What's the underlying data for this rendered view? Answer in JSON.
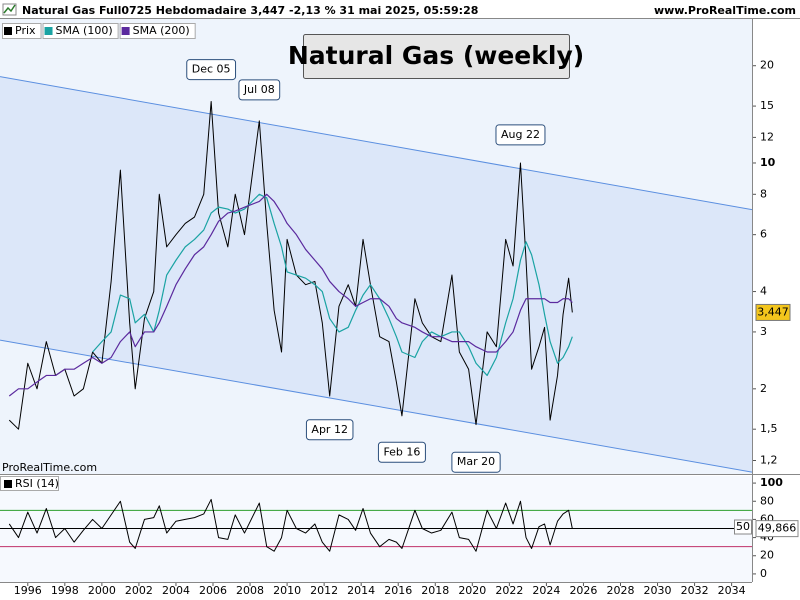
{
  "chart_data": {
    "type": "line",
    "title": "Natural Gas (weekly)",
    "subtitle": "Natural Gas Full0725 Hebdomadaire 3,447 -2,13 % 31 mai 2025, 05:59:28",
    "source": "www.ProRealTime.com",
    "watermark": "ProRealTime.com",
    "log_scale": true,
    "x": [
      1995.0,
      1995.5,
      1996.0,
      1996.5,
      1997.0,
      1997.5,
      1998.0,
      1998.5,
      1999.0,
      1999.5,
      2000.0,
      2000.5,
      2001.0,
      2001.5,
      2001.8,
      2002.3,
      2002.8,
      2003.1,
      2003.5,
      2004.0,
      2004.5,
      2005.0,
      2005.5,
      2005.9,
      2006.3,
      2006.8,
      2007.2,
      2007.7,
      2008.5,
      2008.9,
      2009.3,
      2009.7,
      2010.0,
      2010.5,
      2011.0,
      2011.5,
      2011.9,
      2012.3,
      2012.8,
      2013.3,
      2013.7,
      2014.1,
      2014.5,
      2015.0,
      2015.5,
      2015.9,
      2016.2,
      2016.9,
      2017.3,
      2017.8,
      2018.3,
      2018.9,
      2019.3,
      2019.8,
      2020.2,
      2020.8,
      2021.3,
      2021.8,
      2022.2,
      2022.6,
      2022.9,
      2023.2,
      2023.6,
      2023.9,
      2024.2,
      2024.6,
      2024.9,
      2025.2,
      2025.4
    ],
    "series": [
      {
        "name": "Prix",
        "color": "#000000",
        "values": [
          1.6,
          1.5,
          2.4,
          2.0,
          2.8,
          2.2,
          2.3,
          1.9,
          2.0,
          2.6,
          2.4,
          4.3,
          9.5,
          3.2,
          2.0,
          3.3,
          4.0,
          8.0,
          5.5,
          6.0,
          6.5,
          6.8,
          8.0,
          15.5,
          7.0,
          5.5,
          8.0,
          6.0,
          13.5,
          6.5,
          3.5,
          2.6,
          5.8,
          4.5,
          4.2,
          4.3,
          3.2,
          1.9,
          3.6,
          4.2,
          3.6,
          5.8,
          4.2,
          2.9,
          2.8,
          2.1,
          1.65,
          3.8,
          3.2,
          2.9,
          2.8,
          4.5,
          2.6,
          2.3,
          1.55,
          3.0,
          2.7,
          5.8,
          4.8,
          10.0,
          5.0,
          2.3,
          2.7,
          3.1,
          1.6,
          2.2,
          3.4,
          4.4,
          3.447
        ],
        "value_labels": [
          null,
          null,
          null,
          null,
          null,
          null,
          null,
          null,
          null,
          null,
          null,
          null,
          null,
          null,
          null,
          null,
          null,
          null,
          null,
          null,
          null,
          null,
          null,
          null,
          null,
          null,
          null,
          null,
          null,
          null,
          null,
          null,
          null,
          null,
          null,
          null,
          null,
          null,
          null,
          null,
          null,
          null,
          null,
          null,
          null,
          null,
          null,
          null,
          null,
          null,
          null,
          null,
          null,
          null,
          null,
          null,
          null,
          null,
          null,
          null,
          null,
          null,
          null,
          null,
          null,
          null,
          null,
          null,
          "3,447"
        ]
      },
      {
        "name": "SMA (100)",
        "color": "#1aa3a3",
        "values": [
          null,
          null,
          null,
          null,
          null,
          null,
          null,
          null,
          null,
          2.6,
          2.8,
          3.0,
          3.9,
          3.8,
          3.2,
          3.4,
          3.0,
          3.5,
          4.5,
          5.0,
          5.5,
          5.8,
          6.2,
          7.0,
          7.3,
          7.2,
          7.0,
          7.2,
          8.0,
          7.8,
          6.5,
          5.5,
          4.6,
          4.5,
          4.4,
          4.2,
          4.0,
          3.3,
          3.0,
          3.1,
          3.5,
          3.9,
          4.2,
          3.8,
          3.3,
          2.9,
          2.6,
          2.5,
          2.8,
          3.0,
          2.9,
          3.0,
          3.0,
          2.7,
          2.4,
          2.2,
          2.5,
          3.2,
          3.8,
          5.0,
          5.7,
          5.2,
          4.2,
          3.4,
          2.8,
          2.4,
          2.5,
          2.7,
          2.9
        ]
      },
      {
        "name": "SMA (200)",
        "color": "#5b2a9e",
        "values": [
          1.9,
          2.0,
          2.0,
          2.1,
          2.2,
          2.2,
          2.3,
          2.3,
          2.4,
          2.5,
          2.4,
          2.5,
          2.8,
          3.0,
          2.7,
          3.0,
          3.0,
          3.2,
          3.6,
          4.2,
          4.7,
          5.2,
          5.5,
          6.0,
          6.6,
          7.0,
          7.1,
          7.3,
          7.6,
          8.0,
          7.6,
          7.0,
          6.5,
          6.0,
          5.4,
          5.0,
          4.7,
          4.3,
          4.0,
          3.8,
          3.6,
          3.7,
          3.8,
          3.8,
          3.6,
          3.3,
          3.2,
          3.1,
          3.0,
          2.9,
          2.9,
          2.8,
          2.8,
          2.8,
          2.7,
          2.6,
          2.6,
          2.8,
          3.0,
          3.5,
          3.8,
          3.8,
          3.8,
          3.8,
          3.7,
          3.7,
          3.8,
          3.8,
          3.7
        ]
      }
    ],
    "xlim": [
      1994.5,
      2035.1
    ],
    "xticks": [
      1996,
      1998,
      2000,
      2002,
      2004,
      2006,
      2008,
      2010,
      2012,
      2014,
      2016,
      2018,
      2020,
      2022,
      2024,
      2026,
      2028,
      2030,
      2032,
      2034
    ],
    "ylim": [
      1.09,
      27.9
    ],
    "yticks": [
      {
        "value": 1.2,
        "label": "1,2"
      },
      {
        "value": 1.5,
        "label": "1,5"
      },
      2,
      3,
      4,
      6,
      8,
      10,
      12,
      15,
      20
    ],
    "channel": {
      "x": [
        1994.5,
        2035.1
      ],
      "upper": [
        18.5,
        7.17
      ],
      "lower": [
        2.83,
        1.105
      ],
      "color": "#5b8fe0"
    },
    "annotations": [
      {
        "label": "Dec 05",
        "x": 2005.9,
        "y": 15.6
      },
      {
        "label": "Jul 08",
        "x": 2008.5,
        "y": 13.5
      },
      {
        "label": "Aug 22",
        "x": 2022.6,
        "y": 9.8
      },
      {
        "label": "Apr 12",
        "x": 2012.3,
        "y": 1.89
      },
      {
        "label": "Feb 16",
        "x": 2016.2,
        "y": 1.61
      },
      {
        "label": "Mar 20",
        "x": 2020.2,
        "y": 1.5
      }
    ],
    "rsi": {
      "name": "RSI (14)",
      "color": "#000000",
      "values": [
        55,
        40,
        68,
        45,
        72,
        40,
        50,
        35,
        48,
        60,
        50,
        65,
        80,
        35,
        28,
        60,
        62,
        75,
        45,
        58,
        60,
        62,
        66,
        82,
        40,
        38,
        65,
        45,
        78,
        30,
        25,
        40,
        70,
        50,
        45,
        55,
        35,
        25,
        65,
        60,
        48,
        72,
        45,
        30,
        38,
        35,
        28,
        70,
        50,
        45,
        48,
        68,
        40,
        38,
        25,
        70,
        50,
        78,
        55,
        80,
        40,
        28,
        52,
        55,
        32,
        58,
        66,
        70,
        49.866
      ],
      "value_labels": [
        null,
        null,
        null,
        null,
        null,
        null,
        null,
        null,
        null,
        null,
        null,
        null,
        null,
        null,
        null,
        null,
        null,
        null,
        null,
        null,
        null,
        null,
        null,
        null,
        null,
        null,
        null,
        null,
        null,
        null,
        null,
        null,
        null,
        null,
        null,
        null,
        null,
        null,
        null,
        null,
        null,
        null,
        null,
        null,
        null,
        null,
        null,
        null,
        null,
        null,
        null,
        null,
        null,
        null,
        null,
        null,
        null,
        null,
        null,
        null,
        null,
        null,
        null,
        null,
        null,
        null,
        null,
        null,
        "49,866"
      ],
      "ylim": [
        -8.9,
        107.8
      ],
      "yticks": [
        0,
        20,
        40,
        60,
        80,
        100
      ],
      "levels": [
        70,
        50,
        30
      ],
      "level_colors": [
        "#2e9e2e",
        "#000000",
        "#c0306a"
      ]
    }
  }
}
